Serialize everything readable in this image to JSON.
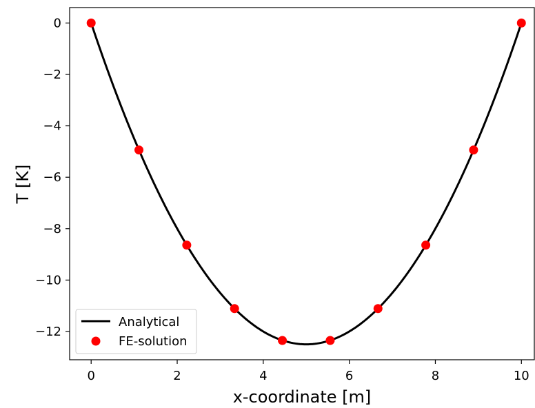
{
  "chart_data": {
    "type": "line",
    "xlabel": "x-coordinate [m]",
    "ylabel": "T [K]",
    "xlim": [
      -0.5,
      10.3
    ],
    "ylim": [
      -13.1,
      0.6
    ],
    "xticks": [
      0,
      2,
      4,
      6,
      8,
      10
    ],
    "yticks": [
      0,
      -2,
      -4,
      -6,
      -8,
      -10,
      -12
    ],
    "grid": false,
    "legend_position": "lower-left",
    "series": [
      {
        "name": "Analytical",
        "kind": "line",
        "color": "#000000",
        "function": "T(x) = 0.5*x*(x-10)",
        "x_range": [
          0,
          10
        ]
      },
      {
        "name": "FE-solution",
        "kind": "scatter",
        "color": "#ff0000",
        "x": [
          0,
          1.111,
          2.222,
          3.333,
          4.444,
          5.556,
          6.667,
          7.778,
          8.889,
          10
        ],
        "y": [
          0,
          -4.94,
          -8.64,
          -11.11,
          -12.35,
          -12.35,
          -11.11,
          -8.64,
          -4.94,
          0
        ]
      }
    ]
  }
}
